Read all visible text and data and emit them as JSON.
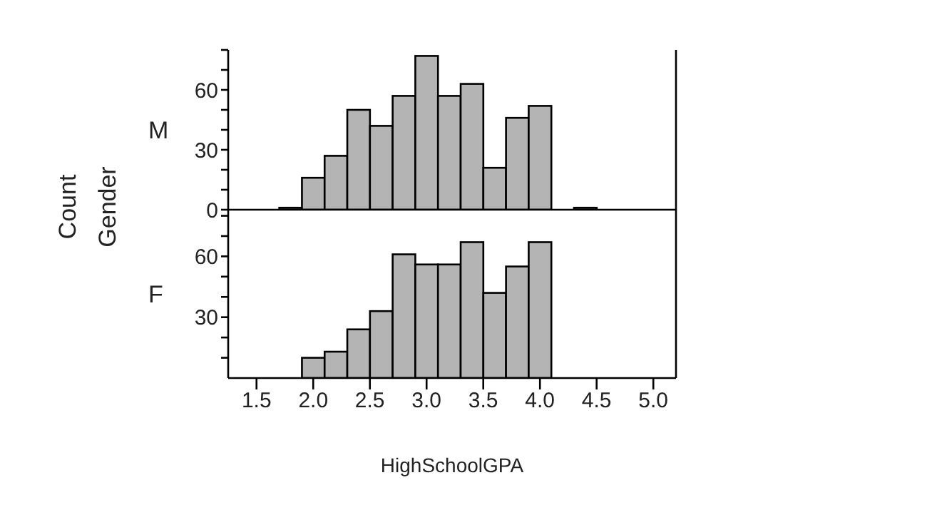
{
  "chart_data": [
    {
      "type": "histogram",
      "ylabel": "M",
      "annotations": [
        "Count",
        "Gender"
      ],
      "tick_labels": "y",
      "color": "#b4b4b4",
      "bins": [
        1.7,
        1.9,
        2.1,
        2.3,
        2.5,
        2.7,
        2.9,
        3.1,
        3.3,
        3.5,
        3.7,
        3.9,
        4.1,
        4.3,
        4.5
      ],
      "values": [
        1,
        16,
        27,
        50,
        42,
        57,
        77,
        57,
        63,
        21,
        46,
        52,
        0,
        1
      ],
      "xlim": [
        1.25,
        5.2
      ],
      "ylim": [
        0,
        80
      ],
      "yticks": [
        0,
        {
          "value": 10,
          "label": null
        },
        {
          "value": 20,
          "label": null
        },
        30,
        {
          "value": 40,
          "label": null
        },
        {
          "value": 50,
          "label": null
        },
        60,
        {
          "value": 70,
          "label": null
        },
        {
          "value": 80,
          "label": null
        }
      ],
      "grid": false,
      "legend": false
    },
    {
      "type": "histogram",
      "ylabel": "F",
      "xlabel": "HighSchoolGPA",
      "color": "#b4b4b4",
      "bins": [
        1.9,
        2.1,
        2.3,
        2.5,
        2.7,
        2.9,
        3.1,
        3.3,
        3.5,
        3.7,
        3.9,
        4.1
      ],
      "values": [
        10,
        13,
        24,
        33,
        61,
        56,
        56,
        67,
        42,
        55,
        67
      ],
      "xlim": [
        1.25,
        5.2
      ],
      "ylim": [
        0,
        83
      ],
      "xticks": [
        1.5,
        {
          "value": 2,
          "label": "2.0"
        },
        2.5,
        {
          "value": 3,
          "label": "3.0"
        },
        3.5,
        {
          "value": 4,
          "label": "4.0"
        },
        4.5,
        {
          "value": 5,
          "label": "5.0"
        }
      ],
      "yticks": [
        {
          "value": 10,
          "label": null
        },
        {
          "value": 20,
          "label": null
        },
        30,
        {
          "value": 40,
          "label": null
        },
        {
          "value": 50,
          "label": null
        },
        60,
        {
          "value": 70,
          "label": null
        },
        {
          "value": 80,
          "label": null
        }
      ],
      "grid": false,
      "legend": false
    }
  ]
}
